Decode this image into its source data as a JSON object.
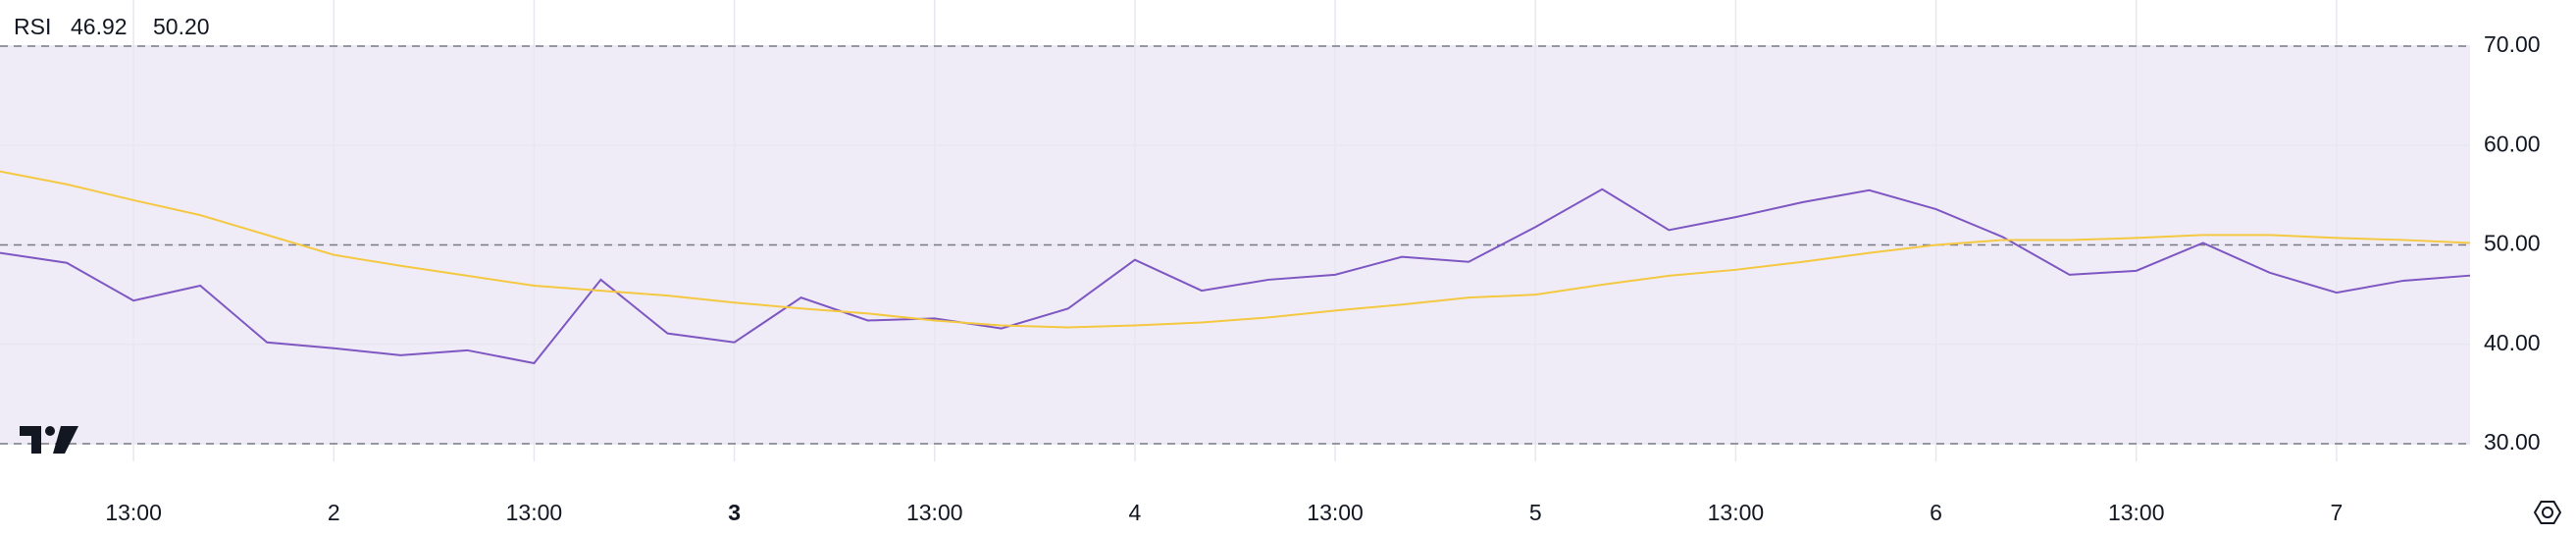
{
  "chart_data": {
    "type": "line",
    "title": "RSI",
    "categories": [
      null,
      null,
      "13:00",
      null,
      null,
      "2",
      null,
      null,
      "13:00",
      null,
      null,
      "3",
      null,
      null,
      "13:00",
      null,
      null,
      "4",
      null,
      null,
      "13:00",
      null,
      null,
      "5",
      null,
      null,
      "13:00",
      null,
      null,
      "6",
      null,
      null,
      "13:00",
      null,
      null,
      "7",
      null,
      null
    ],
    "bold_categories": [
      "3"
    ],
    "series": [
      {
        "color": "#7e57c2",
        "values": [
          49.2,
          48.2,
          44.4,
          45.9,
          40.2,
          39.6,
          38.9,
          39.4,
          38.1,
          46.5,
          41.1,
          40.2,
          44.7,
          42.4,
          42.6,
          41.6,
          43.6,
          48.5,
          45.4,
          46.5,
          47.0,
          48.8,
          48.3,
          51.8,
          55.6,
          51.5,
          52.8,
          54.3,
          55.5,
          53.6,
          50.8,
          47.0,
          47.4,
          50.2,
          47.2,
          45.2,
          46.4,
          46.92
        ],
        "value_labels": [
          null,
          null,
          null,
          null,
          null,
          null,
          null,
          null,
          null,
          null,
          null,
          null,
          null,
          null,
          null,
          null,
          null,
          null,
          null,
          null,
          null,
          null,
          null,
          null,
          null,
          null,
          null,
          null,
          null,
          null,
          null,
          null,
          null,
          null,
          null,
          null,
          null,
          "46.92"
        ]
      },
      {
        "color": "#f5c842",
        "values": [
          57.4,
          56.1,
          54.5,
          53.0,
          51.0,
          49.0,
          47.9,
          46.9,
          45.9,
          45.4,
          44.9,
          44.2,
          43.6,
          43.1,
          42.4,
          41.9,
          41.7,
          41.9,
          42.2,
          42.7,
          43.4,
          44.0,
          44.7,
          45.0,
          46.0,
          46.9,
          47.5,
          48.3,
          49.2,
          50.0,
          50.5,
          50.5,
          50.7,
          51.0,
          51.0,
          50.7,
          50.5,
          50.2
        ],
        "value_labels": [
          null,
          null,
          null,
          null,
          null,
          null,
          null,
          null,
          null,
          null,
          null,
          null,
          null,
          null,
          null,
          null,
          null,
          null,
          null,
          null,
          null,
          null,
          null,
          null,
          null,
          null,
          null,
          null,
          null,
          null,
          null,
          null,
          null,
          null,
          null,
          null,
          null,
          "50.20"
        ]
      }
    ],
    "ylim": [
      30,
      70
    ],
    "yticks": [
      {
        "value": 30,
        "label": "30.00"
      },
      {
        "value": 40,
        "label": "40.00"
      },
      {
        "value": 50,
        "label": "50.00"
      },
      {
        "value": 60,
        "label": "60.00"
      },
      {
        "value": 70,
        "label": "70.00"
      }
    ],
    "levels": [
      30,
      50,
      70
    ],
    "band_color": "#efecf8",
    "grid": true
  }
}
